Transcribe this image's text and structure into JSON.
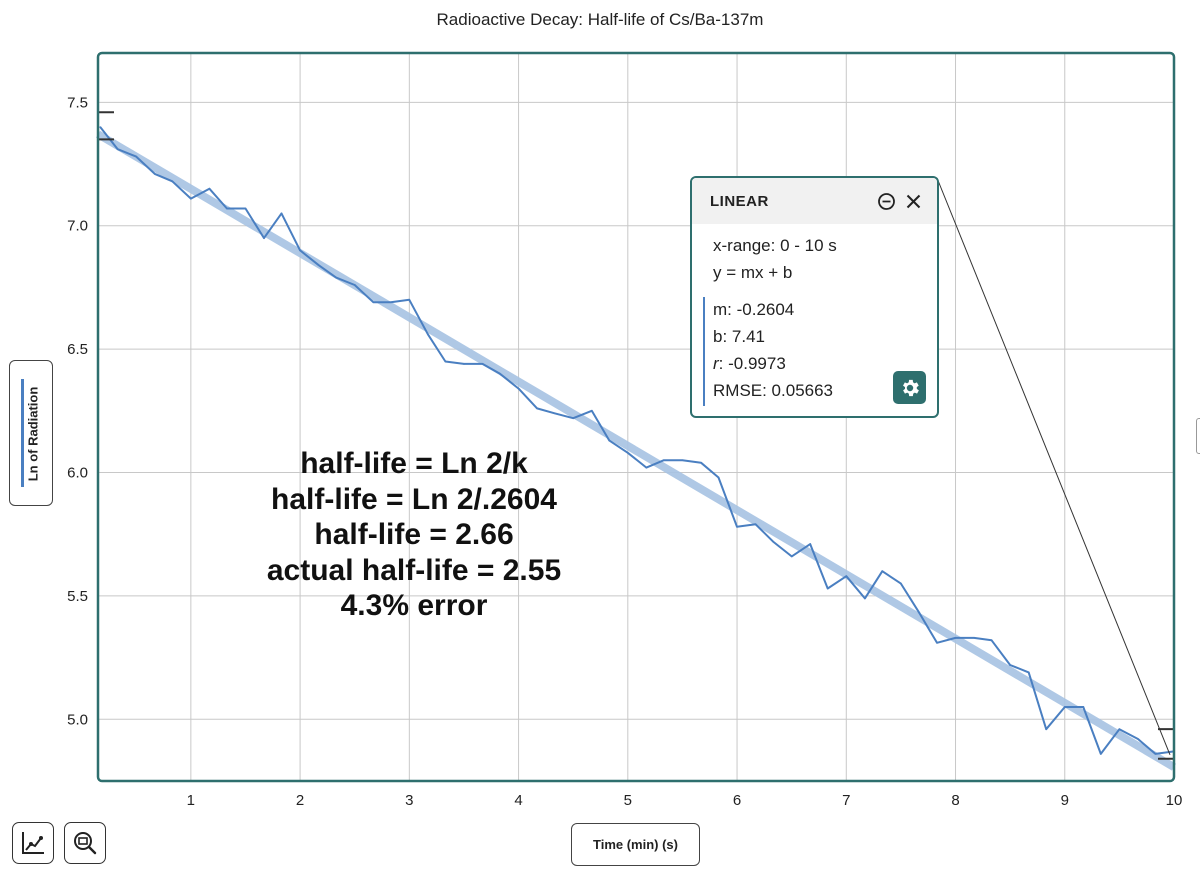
{
  "chart_data": {
    "type": "line",
    "title": "Radioactive Decay: Half-life of Cs/Ba-137m",
    "xlabel": "Time (min) (s)",
    "ylabel": "Ln of Radiation",
    "xlim": [
      0.15,
      10
    ],
    "ylim": [
      4.75,
      7.7
    ],
    "x_ticks": [
      1,
      2,
      3,
      4,
      5,
      6,
      7,
      8,
      9,
      10
    ],
    "y_ticks": [
      5.0,
      5.5,
      6.0,
      6.5,
      7.0,
      7.5
    ],
    "x_tick_labels": [
      "1",
      "2",
      "3",
      "4",
      "5",
      "6",
      "7",
      "8",
      "9",
      "10"
    ],
    "y_tick_labels": [
      "5.0",
      "5.5",
      "6.0",
      "6.5",
      "7.0",
      "7.5"
    ],
    "grid": true,
    "series": [
      {
        "name": "Ln of Radiation",
        "color": "#4a7fc1",
        "x": [
          0.17,
          0.33,
          0.5,
          0.67,
          0.83,
          1.0,
          1.17,
          1.33,
          1.5,
          1.67,
          1.83,
          2.0,
          2.17,
          2.33,
          2.5,
          2.67,
          2.83,
          3.0,
          3.17,
          3.33,
          3.5,
          3.67,
          3.83,
          4.0,
          4.17,
          4.33,
          4.5,
          4.67,
          4.83,
          5.0,
          5.17,
          5.33,
          5.5,
          5.67,
          5.83,
          6.0,
          6.17,
          6.33,
          6.5,
          6.67,
          6.83,
          7.0,
          7.17,
          7.33,
          7.5,
          7.67,
          7.83,
          8.0,
          8.17,
          8.33,
          8.5,
          8.67,
          8.83,
          9.0,
          9.17,
          9.33,
          9.5,
          9.67,
          9.83,
          10.0
        ],
        "y": [
          7.4,
          7.31,
          7.28,
          7.21,
          7.18,
          7.11,
          7.15,
          7.07,
          7.07,
          6.95,
          7.05,
          6.9,
          6.84,
          6.79,
          6.76,
          6.69,
          6.69,
          6.7,
          6.56,
          6.45,
          6.44,
          6.44,
          6.4,
          6.34,
          6.26,
          6.24,
          6.22,
          6.25,
          6.13,
          6.08,
          6.02,
          6.05,
          6.05,
          6.04,
          5.98,
          5.78,
          5.79,
          5.72,
          5.66,
          5.71,
          5.53,
          5.58,
          5.49,
          5.6,
          5.55,
          5.43,
          5.31,
          5.33,
          5.33,
          5.32,
          5.22,
          5.19,
          4.96,
          5.05,
          5.05,
          4.86,
          4.96,
          4.92,
          4.86,
          4.87
        ]
      }
    ],
    "fit": {
      "type": "linear",
      "m": -0.2604,
      "b": 7.41,
      "x_range": [
        0,
        10
      ],
      "color": "#a7c3e3"
    },
    "range_brackets": [
      {
        "x": 0.15,
        "y_low": 7.35,
        "y_high": 7.46
      },
      {
        "x": 10.0,
        "y_low": 4.84,
        "y_high": 4.96
      }
    ]
  },
  "annotation": {
    "lines": [
      "half-life = Ln 2/k",
      "half-life = Ln 2/.2604",
      "half-life = 2.66",
      "actual half-life = 2.55",
      "4.3% error"
    ]
  },
  "linear_panel": {
    "title": "LINEAR",
    "x_range": "x-range: 0 - 10 s",
    "equation": "y = mx + b",
    "m_line": "m: -0.2604",
    "b_line": "b: 7.41",
    "r_var": "r",
    "r_value": ": -0.9973",
    "rmse_line": "RMSE: 0.05663",
    "minimize_icon": "minus-circle-icon",
    "close_icon": "close-icon",
    "settings_icon": "gear-icon"
  },
  "toolbar": {
    "graph_tool_icon": "graph-tool-icon",
    "zoom_icon": "zoom-icon"
  },
  "colors": {
    "frame": "#2e6f6e",
    "series": "#4a7fc1",
    "fit": "#a7c3e3",
    "grid": "#c8c8c8"
  }
}
